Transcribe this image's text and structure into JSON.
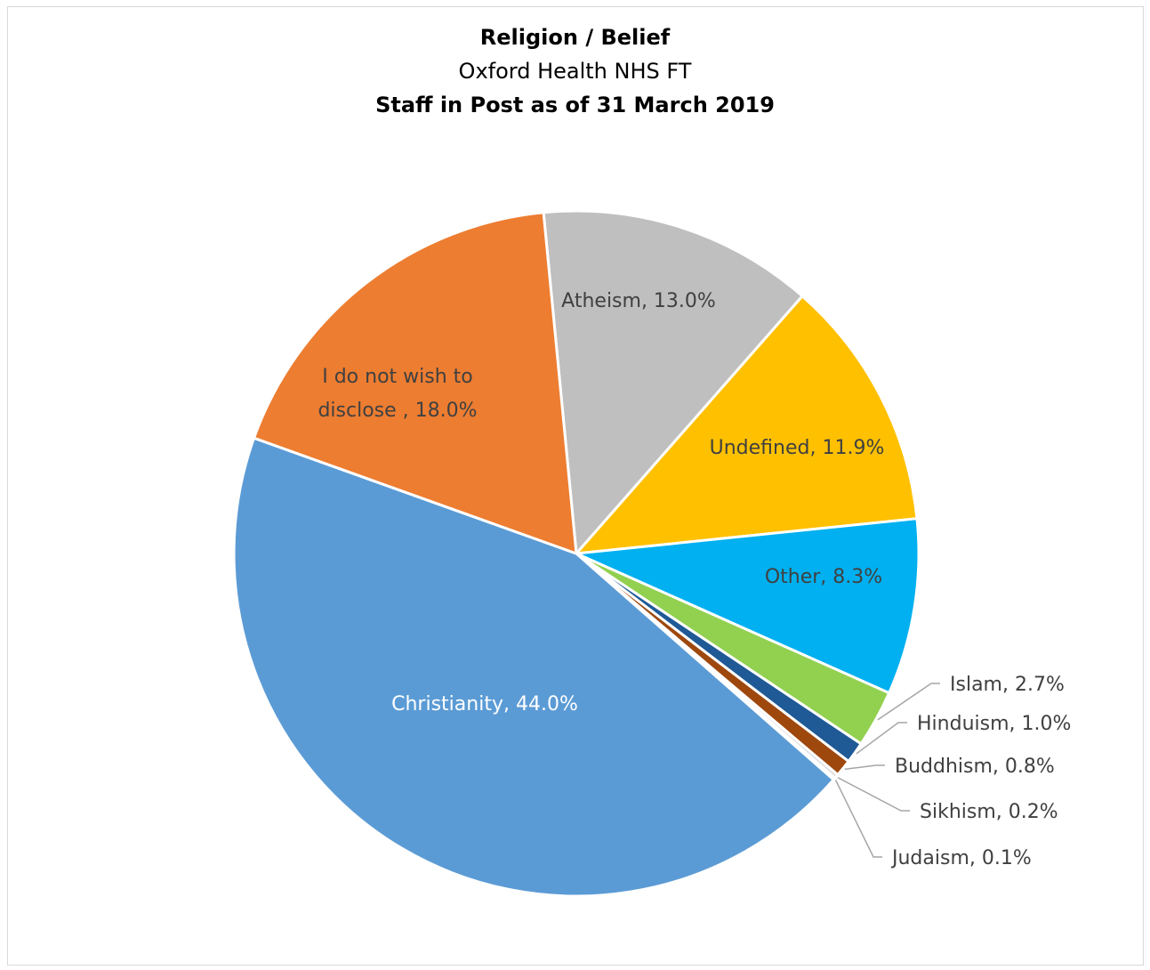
{
  "chart_data": {
    "type": "pie",
    "title": "Religion / Belief",
    "subtitle": "Oxford Health NHS FT",
    "subtitle2": "Staff in Post as of 31 March 2019",
    "slices": [
      {
        "label": "Atheism, 13.0%",
        "name": "Atheism",
        "value": 13.0,
        "color": "#bfbfbf"
      },
      {
        "label": "Undefined, 11.9%",
        "name": "Undefined",
        "value": 11.9,
        "color": "#ffc000"
      },
      {
        "label": "Other, 8.3%",
        "name": "Other",
        "value": 8.3,
        "color": "#00b0f0"
      },
      {
        "label": "Islam, 2.7%",
        "name": "Islam",
        "value": 2.7,
        "color": "#92d050"
      },
      {
        "label": "Hinduism, 1.0%",
        "name": "Hinduism",
        "value": 1.0,
        "color": "#1f5a96"
      },
      {
        "label": "Buddhism, 0.8%",
        "name": "Buddhism",
        "value": 0.8,
        "color": "#9e480e"
      },
      {
        "label": "Sikhism, 0.2%",
        "name": "Sikhism",
        "value": 0.2,
        "color": "#dcdcdc"
      },
      {
        "label": "Judaism, 0.1%",
        "name": "Judaism",
        "value": 0.1,
        "color": "#c9c9c9"
      },
      {
        "label": "Christianity, 44.0%",
        "name": "Christianity",
        "value": 44.0,
        "color": "#5b9bd5"
      },
      {
        "label": "I do not wish to disclose , 18.0%",
        "name": "I do not wish to disclose",
        "value": 18.0,
        "color": "#ed7d31"
      }
    ]
  }
}
